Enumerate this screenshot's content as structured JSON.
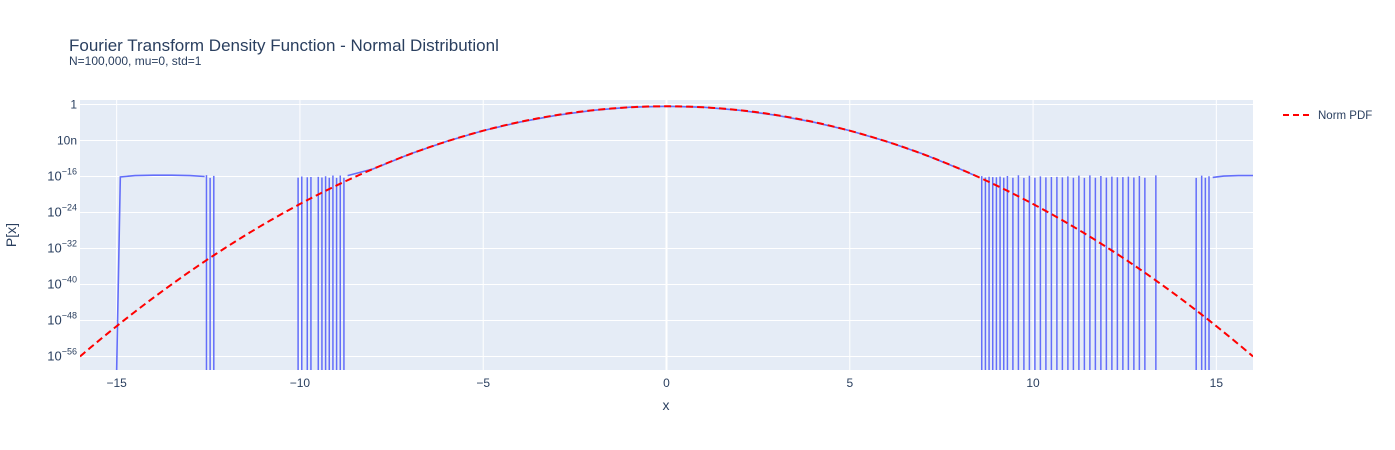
{
  "chart_data": {
    "type": "line",
    "title": "Fourier Transform Density Function - Normal Distributionl",
    "subtitle": "N=100,000, mu=0, std=1",
    "xlabel": "x",
    "ylabel": "P[x]",
    "xlim": [
      -16,
      16
    ],
    "y_scale": "log",
    "ylim_log10": [
      -59,
      1
    ],
    "x_ticks": [
      -15,
      -10,
      -5,
      0,
      5,
      10,
      15
    ],
    "x_tick_labels": [
      "−15",
      "−10",
      "−5",
      "0",
      "5",
      "10",
      "15"
    ],
    "y_ticks": [
      {
        "log10": 0,
        "base": "1",
        "exp": ""
      },
      {
        "log10": -8,
        "base": "10n",
        "exp": ""
      },
      {
        "log10": -16,
        "base": "10",
        "exp": "−16"
      },
      {
        "log10": -24,
        "base": "10",
        "exp": "−24"
      },
      {
        "log10": -32,
        "base": "10",
        "exp": "−32"
      },
      {
        "log10": -40,
        "base": "10",
        "exp": "−40"
      },
      {
        "log10": -48,
        "base": "10",
        "exp": "−48"
      },
      {
        "log10": -56,
        "base": "10",
        "exp": "−56"
      }
    ],
    "grid": true,
    "legend_position": "top-right",
    "series": [
      {
        "name": "",
        "style": "solid",
        "color": "#636efa",
        "description_free_segments": [
          {
            "x": [
              -15.0,
              -14.9,
              -14.5,
              -14.0,
              -13.5,
              -13.0,
              -12.6
            ],
            "y_log10": [
              -59,
              -16.1,
              -15.8,
              -15.7,
              -15.7,
              -15.8,
              -16.0
            ]
          },
          {
            "x": [
              -8.7,
              -8.0,
              -7.0,
              -6.0,
              -5.0,
              -4.0,
              -3.0,
              -2.0,
              -1.0,
              0.0,
              1.0,
              2.0,
              3.0,
              4.0,
              5.0,
              6.0,
              7.0,
              8.0,
              8.5
            ],
            "y_log10": [
              -15.8,
              -14.3,
              -11.0,
              -8.2,
              -5.8,
              -3.9,
              -2.4,
              -1.3,
              -0.6,
              -0.4,
              -0.6,
              -1.3,
              -2.4,
              -3.9,
              -5.8,
              -8.2,
              -11.0,
              -14.3,
              -16.1
            ]
          },
          {
            "x": [
              14.9,
              15.2,
              15.6,
              16.0
            ],
            "y_log10": [
              -16.2,
              -15.9,
              -15.8,
              -15.8
            ]
          }
        ],
        "spikes_x": [
          -12.55,
          -12.45,
          -12.35,
          -10.05,
          -9.95,
          -9.8,
          -9.7,
          -9.5,
          -9.4,
          -9.3,
          -9.2,
          -9.1,
          -9.0,
          -8.9,
          -8.8,
          8.6,
          8.7,
          8.8,
          8.9,
          9.0,
          9.1,
          9.2,
          9.3,
          9.45,
          9.6,
          9.75,
          9.9,
          10.05,
          10.2,
          10.35,
          10.5,
          10.65,
          10.8,
          10.95,
          11.1,
          11.25,
          11.4,
          11.55,
          11.7,
          11.85,
          12.0,
          12.15,
          12.3,
          12.45,
          12.6,
          12.75,
          12.9,
          13.05,
          13.35,
          14.45,
          14.6,
          14.7,
          14.8
        ]
      },
      {
        "name": "Norm PDF",
        "style": "dashed",
        "color": "#ff0000",
        "mu": 0,
        "std": 1
      }
    ]
  }
}
